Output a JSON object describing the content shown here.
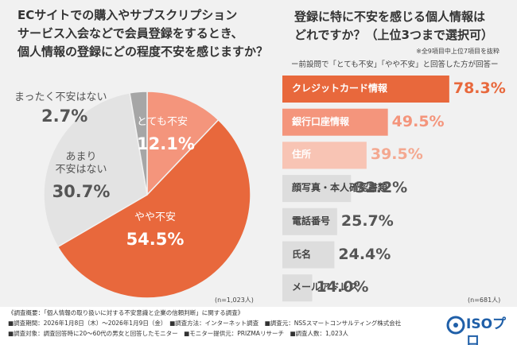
{
  "chart_data": [
    {
      "type": "pie",
      "title": [
        "ECサイトでの購入やサブスクリプション",
        "サービス入会などで会員登録をするとき、",
        "個人情報の登録にどの程度不安を感じますか？"
      ],
      "categories": [
        "とても不安",
        "やや不安",
        "あまり\n不安はない",
        "まったく不安はない"
      ],
      "values": [
        12.1,
        54.5,
        30.7,
        2.7
      ],
      "value_labels": [
        "12.1%",
        "54.5%",
        "30.7%",
        "2.7%"
      ],
      "colors": [
        "#f4957c",
        "#e8683c",
        "#e3e3e3",
        "#a6a6a6"
      ],
      "text_colors": [
        "#ffffff",
        "#ffffff",
        "#555555",
        "#555555"
      ],
      "note": "(n=1,023人)"
    },
    {
      "type": "hbar",
      "title": [
        "登録に特に不安を感じる個人情報は",
        "どれですか？（上位3つまで選択可）"
      ],
      "note_top": "※全9項目中上位7項目を抜粋",
      "subtitle": "ー前設問で「とても不安」「やや不安」と回答した方が回答ー",
      "categories": [
        "クレジットカード情報",
        "銀行口座情報",
        "住所",
        "顔写真・本人確認書類",
        "電話番号",
        "氏名",
        "メールアドレス"
      ],
      "values": [
        78.3,
        49.5,
        39.5,
        32.2,
        25.7,
        24.4,
        14
      ],
      "value_labels": [
        "78.3%",
        "49.5%",
        "39.5%",
        "32.2%",
        "25.7%",
        "24.4%",
        "14.0%"
      ],
      "xlim": [
        0,
        100
      ],
      "colors": [
        "#e8683c",
        "#f4957c",
        "#f8c4b4",
        "#dddddd",
        "#dddddd",
        "#dddddd",
        "#dddddd"
      ],
      "text_colors": [
        "#ffffff",
        "#ffffff",
        "#ffffff",
        "#444444",
        "#444444",
        "#444444",
        "#444444"
      ],
      "label_colors": [
        "#e8683c",
        "#f4957c",
        "#f4a890",
        "#555555",
        "#555555",
        "#555555",
        "#555555"
      ],
      "note": "(n=681人)"
    }
  ],
  "footer": [
    "《調査概要：「個人情報の取り扱いに対する不安意識と企業の信頼判断」に関する調査》",
    "■調査期間：2026年1月8日（木）～2026年1月9日（金）　■調査方法：インターネット調査　■調査元：NSSスマートコンサルティング株式会社",
    "■調査対象：調査回答時に20〜60代の男女と回答したモニター　■モニター提供元：PRIZMAリサーチ　■調査人数：1,023人"
  ],
  "logo": "ISOプロ"
}
